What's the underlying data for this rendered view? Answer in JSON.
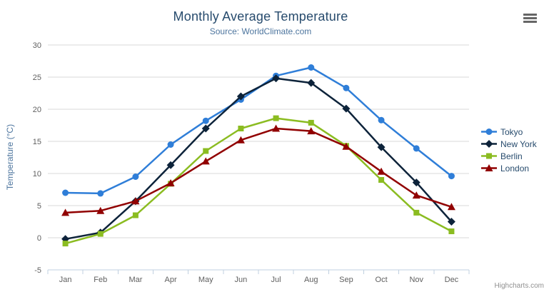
{
  "chart_data": {
    "type": "line",
    "title": "Monthly Average Temperature",
    "subtitle": "Source: WorldClimate.com",
    "xlabel": "",
    "ylabel": "Temperature (°C)",
    "categories": [
      "Jan",
      "Feb",
      "Mar",
      "Apr",
      "May",
      "Jun",
      "Jul",
      "Aug",
      "Sep",
      "Oct",
      "Nov",
      "Dec"
    ],
    "ylim": [
      -5,
      30
    ],
    "ytick_interval": 5,
    "grid": true,
    "legend_position": "right",
    "series": [
      {
        "name": "Tokyo",
        "color": "#2f7ed8",
        "marker": "circle",
        "values": [
          7.0,
          6.9,
          9.5,
          14.5,
          18.2,
          21.5,
          25.2,
          26.5,
          23.3,
          18.3,
          13.9,
          9.6
        ]
      },
      {
        "name": "New York",
        "color": "#0d233a",
        "marker": "diamond",
        "values": [
          -0.2,
          0.8,
          5.7,
          11.3,
          17.0,
          22.0,
          24.8,
          24.1,
          20.1,
          14.1,
          8.6,
          2.5
        ]
      },
      {
        "name": "Berlin",
        "color": "#8bbc21",
        "marker": "square",
        "values": [
          -0.9,
          0.6,
          3.5,
          8.4,
          13.5,
          17.0,
          18.6,
          17.9,
          14.3,
          9.0,
          3.9,
          1.0
        ]
      },
      {
        "name": "London",
        "color": "#910000",
        "marker": "triangle",
        "values": [
          3.9,
          4.2,
          5.7,
          8.5,
          11.9,
          15.2,
          17.0,
          16.6,
          14.2,
          10.3,
          6.6,
          4.8
        ]
      }
    ],
    "credit": "Highcharts.com"
  },
  "toolbar": {
    "context_menu_icon": "hamburger-menu"
  },
  "colors": {
    "title": "#274b6d",
    "subtitle": "#4d759e",
    "axis_label": "#606060",
    "axis_title": "#4d759e",
    "grid_line": "#d8d8d8",
    "axis_line": "#c0d0e0",
    "legend_text": "#274b6d",
    "credit": "#909090",
    "menu_icon": "#666666"
  }
}
